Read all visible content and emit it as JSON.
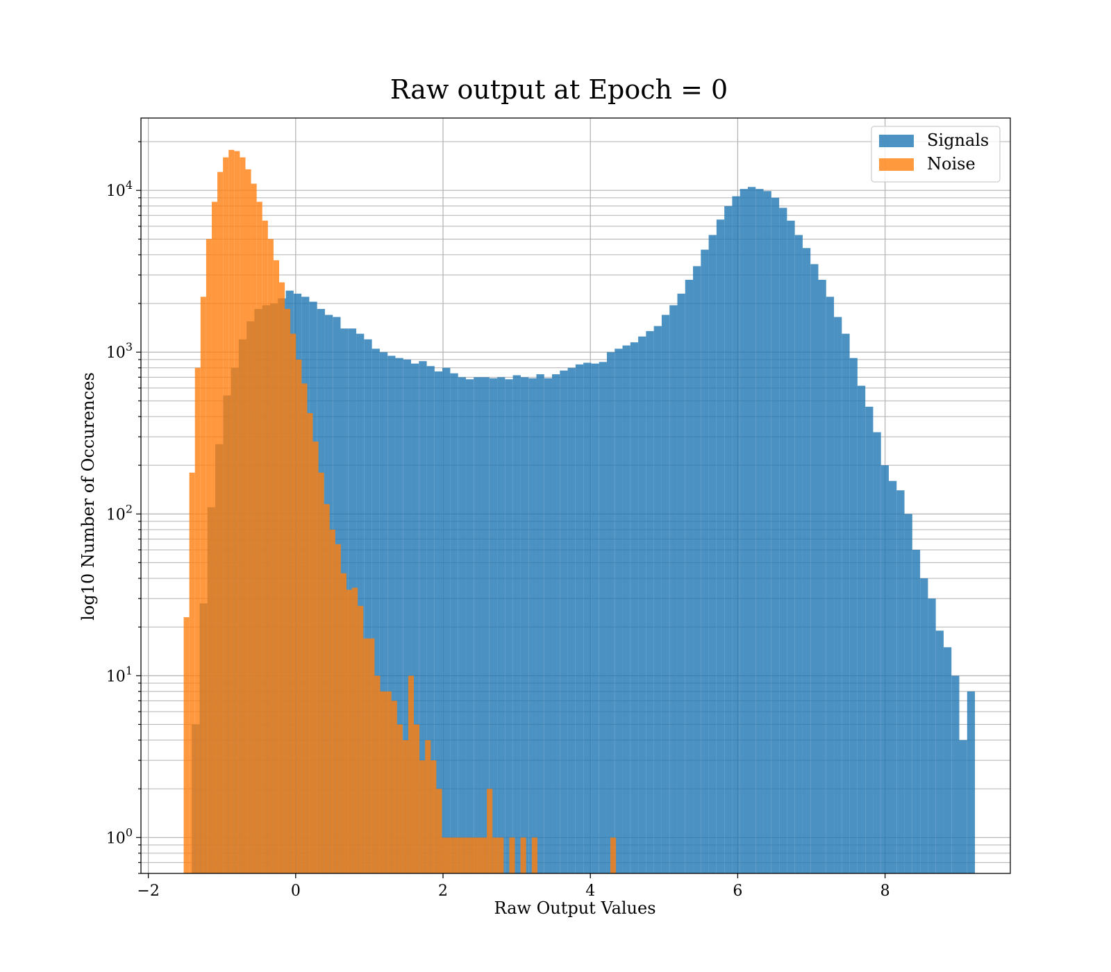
{
  "chart_data": {
    "type": "histogram",
    "title": "Raw output at Epoch = 0",
    "xlabel": "Raw Output Values",
    "ylabel": "log10 Number of Occurences",
    "xlim": [
      -2.1,
      9.7
    ],
    "ylim": [
      0.6,
      28000
    ],
    "yscale": "log",
    "x_ticks": [
      -2,
      0,
      2,
      4,
      6,
      8
    ],
    "x_tick_labels": [
      "−2",
      "0",
      "2",
      "4",
      "6",
      "8"
    ],
    "y_ticks": [
      1,
      10,
      100,
      1000,
      10000
    ],
    "y_tick_labels": [
      {
        "base": "10",
        "exp": "0"
      },
      {
        "base": "10",
        "exp": "1"
      },
      {
        "base": "10",
        "exp": "2"
      },
      {
        "base": "10",
        "exp": "3"
      },
      {
        "base": "10",
        "exp": "4"
      }
    ],
    "grid": true,
    "legend_position": "top-right",
    "series": [
      {
        "name": "Signals",
        "color": "#1f77b4",
        "opacity": 0.8,
        "x_start": -1.41,
        "bin_width": 0.1063,
        "counts": [
          5,
          28,
          110,
          270,
          540,
          800,
          1200,
          1550,
          1850,
          1950,
          2000,
          2150,
          2400,
          2300,
          2200,
          2050,
          1850,
          1700,
          1650,
          1400,
          1400,
          1300,
          1200,
          1050,
          1000,
          950,
          920,
          900,
          850,
          880,
          820,
          760,
          800,
          740,
          700,
          680,
          700,
          700,
          690,
          700,
          680,
          720,
          700,
          690,
          730,
          690,
          730,
          770,
          800,
          840,
          860,
          850,
          870,
          1000,
          1050,
          1100,
          1150,
          1250,
          1350,
          1450,
          1700,
          1950,
          2300,
          2800,
          3400,
          4300,
          5300,
          6600,
          8000,
          9200,
          10200,
          10500,
          10200,
          9900,
          9000,
          7800,
          6500,
          5300,
          4400,
          3500,
          2800,
          2200,
          1650,
          1300,
          920,
          620,
          460,
          320,
          200,
          160,
          140,
          100,
          60,
          40,
          30,
          19,
          15,
          10,
          4,
          8
        ]
      },
      {
        "name": "Noise",
        "color": "#ff7f0e",
        "opacity": 0.8,
        "x_start": -1.52,
        "bin_width": 0.0762,
        "counts": [
          23,
          180,
          800,
          2200,
          5000,
          8500,
          13000,
          16000,
          17800,
          17500,
          16000,
          13500,
          11000,
          8500,
          6500,
          5000,
          3700,
          2700,
          1850,
          1300,
          900,
          640,
          420,
          280,
          180,
          115,
          80,
          65,
          43,
          34,
          35,
          27,
          17,
          17,
          10,
          8,
          8,
          7,
          5,
          4,
          10,
          5,
          3,
          4,
          3,
          2,
          1,
          1,
          1,
          1,
          1,
          1,
          1,
          1,
          2,
          1,
          1,
          0,
          1,
          0,
          1,
          0,
          1,
          0,
          0,
          0,
          0,
          0,
          0,
          0,
          0,
          0,
          0,
          0,
          0,
          0,
          1
        ]
      }
    ]
  }
}
